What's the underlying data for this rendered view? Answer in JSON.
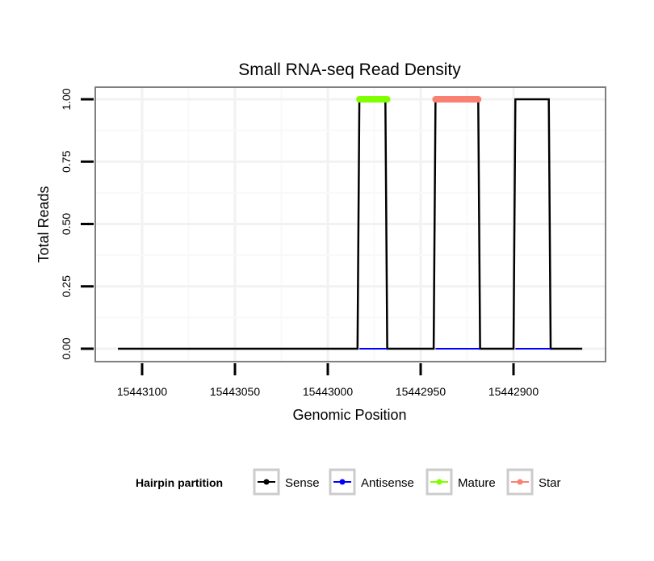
{
  "chart_data": {
    "type": "line",
    "title": "Small RNA-seq Read Density",
    "xlabel": "Genomic Position",
    "ylabel": "Total Reads",
    "xlim": [
      15443113,
      15442863
    ],
    "x_reversed": true,
    "ylim": [
      0,
      1
    ],
    "xticks": [
      15443100,
      15443050,
      15443000,
      15442950,
      15442900
    ],
    "xtick_labels": [
      "15443100",
      "15443050",
      "15443000",
      "15442950",
      "15442900"
    ],
    "yticks": [
      0,
      0.25,
      0.5,
      0.75,
      1
    ],
    "ytick_labels": [
      "0.00",
      "0.25",
      "0.50",
      "0.75",
      "1.00"
    ],
    "grid": true,
    "legend": {
      "title": "Hairpin partition",
      "placement": "bottom",
      "entries": [
        "Sense",
        "Antisense",
        "Mature",
        "Star"
      ]
    },
    "series": [
      {
        "name": "Sense",
        "color": "#000000",
        "x": [
          15443113,
          15442984,
          15442983,
          15442969,
          15442968,
          15442943,
          15442942,
          15442919,
          15442918,
          15442900,
          15442899,
          15442881,
          15442880,
          15442863
        ],
        "y": [
          0,
          0,
          1,
          1,
          0,
          0,
          1,
          1,
          0,
          0,
          1,
          1,
          0,
          0
        ]
      },
      {
        "name": "Antisense",
        "color": "#0000ff",
        "segments": [
          [
            15442983,
            15442968
          ],
          [
            15442942,
            15442918
          ],
          [
            15442899,
            15442880
          ]
        ],
        "y": 0
      },
      {
        "name": "Mature",
        "color": "#7fff00",
        "x": [
          15442983,
          15442968
        ],
        "y": [
          1,
          1
        ]
      },
      {
        "name": "Star",
        "color": "#fa8072",
        "x": [
          15442942,
          15442919
        ],
        "y": [
          1,
          1
        ]
      }
    ]
  }
}
